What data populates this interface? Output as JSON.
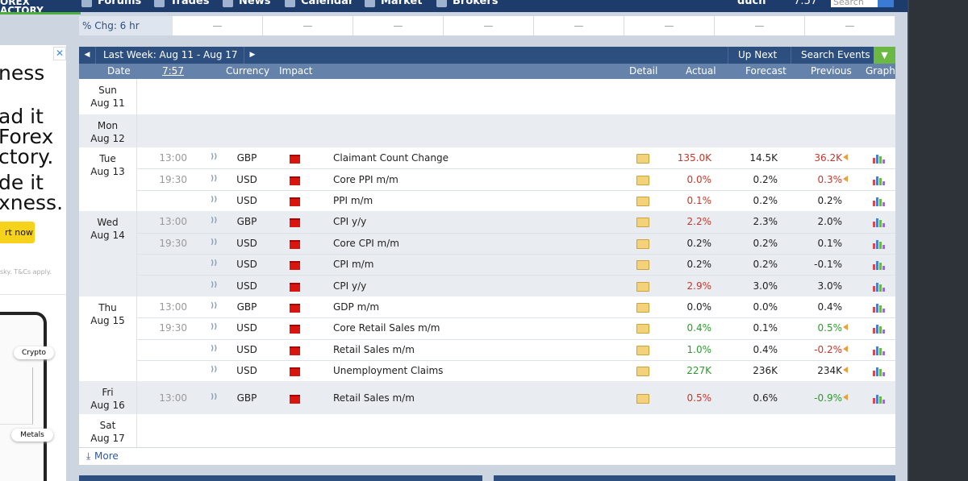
{
  "nav": {
    "logo": [
      "OREX",
      "ACTORY"
    ],
    "items": [
      "Forums",
      "Trades",
      "News",
      "Calendar",
      "Market",
      "Brokers"
    ],
    "user": "duch",
    "time": "7:57",
    "search": "Search"
  },
  "ad": {
    "lines": [
      "ness",
      "ad it",
      "Forex",
      "ctory.",
      "de it",
      "xness."
    ],
    "button": "rt now",
    "disclaimer": "sky. T&Cs apply.",
    "tags": [
      "Crypto",
      "Metals"
    ]
  },
  "change_bar": {
    "label": "% Chg: 6 hr",
    "cells": [
      "—",
      "—",
      "—",
      "—",
      "—",
      "—",
      "—",
      "—"
    ]
  },
  "calendar": {
    "nav_title": "Last Week: Aug 11 - Aug 17",
    "up_next": "Up Next",
    "search_events": "Search Events",
    "columns": {
      "date": "Date",
      "time": "7:57",
      "currency": "Currency",
      "impact": "Impact",
      "detail": "Detail",
      "actual": "Actual",
      "forecast": "Forecast",
      "previous": "Previous",
      "graph": "Graph"
    },
    "days": [
      {
        "day": "Sun",
        "date": "Aug 11",
        "events": []
      },
      {
        "day": "Mon",
        "date": "Aug 12",
        "events": []
      },
      {
        "day": "Tue",
        "date": "Aug 13",
        "events": [
          {
            "time": "13:00",
            "currency": "GBP",
            "event": "Claimant Count Change",
            "actual": "135.0K",
            "actual_color": "#c0392b",
            "forecast": "14.5K",
            "previous": "36.2K",
            "previous_color": "#c0392b",
            "revised": true
          },
          {
            "time": "19:30",
            "currency": "USD",
            "event": "Core PPI m/m",
            "actual": "0.0%",
            "actual_color": "#c0392b",
            "forecast": "0.2%",
            "previous": "0.3%",
            "previous_color": "#c0392b",
            "revised": true
          },
          {
            "currency": "USD",
            "event": "PPI m/m",
            "actual": "0.1%",
            "actual_color": "#c0392b",
            "forecast": "0.2%",
            "previous": "0.2%"
          }
        ]
      },
      {
        "day": "Wed",
        "date": "Aug 14",
        "events": [
          {
            "time": "13:00",
            "currency": "GBP",
            "event": "CPI y/y",
            "actual": "2.2%",
            "actual_color": "#c0392b",
            "forecast": "2.3%",
            "previous": "2.0%"
          },
          {
            "time": "19:30",
            "currency": "USD",
            "event": "Core CPI m/m",
            "actual": "0.2%",
            "forecast": "0.2%",
            "previous": "0.1%"
          },
          {
            "currency": "USD",
            "event": "CPI m/m",
            "actual": "0.2%",
            "forecast": "0.2%",
            "previous": "-0.1%"
          },
          {
            "currency": "USD",
            "event": "CPI y/y",
            "actual": "2.9%",
            "actual_color": "#c0392b",
            "forecast": "3.0%",
            "previous": "3.0%"
          }
        ]
      },
      {
        "day": "Thu",
        "date": "Aug 15",
        "events": [
          {
            "time": "13:00",
            "currency": "GBP",
            "event": "GDP m/m",
            "actual": "0.0%",
            "forecast": "0.0%",
            "previous": "0.4%"
          },
          {
            "time": "19:30",
            "currency": "USD",
            "event": "Core Retail Sales m/m",
            "actual": "0.4%",
            "actual_color": "#2e9a2e",
            "forecast": "0.1%",
            "previous": "0.5%",
            "previous_color": "#2e9a2e",
            "revised": true
          },
          {
            "currency": "USD",
            "event": "Retail Sales m/m",
            "actual": "1.0%",
            "actual_color": "#2e9a2e",
            "forecast": "0.4%",
            "previous": "-0.2%",
            "previous_color": "#c0392b",
            "revised": true
          },
          {
            "currency": "USD",
            "event": "Unemployment Claims",
            "actual": "227K",
            "actual_color": "#2e9a2e",
            "forecast": "236K",
            "previous": "234K",
            "revised": true
          }
        ]
      },
      {
        "day": "Fri",
        "date": "Aug 16",
        "events": [
          {
            "time": "13:00",
            "currency": "GBP",
            "event": "Retail Sales m/m",
            "actual": "0.5%",
            "actual_color": "#c0392b",
            "forecast": "0.6%",
            "previous": "-0.9%",
            "previous_color": "#2e9a2e",
            "revised": true
          }
        ]
      },
      {
        "day": "Sat",
        "date": "Aug 17",
        "events": []
      }
    ],
    "more": "More"
  }
}
